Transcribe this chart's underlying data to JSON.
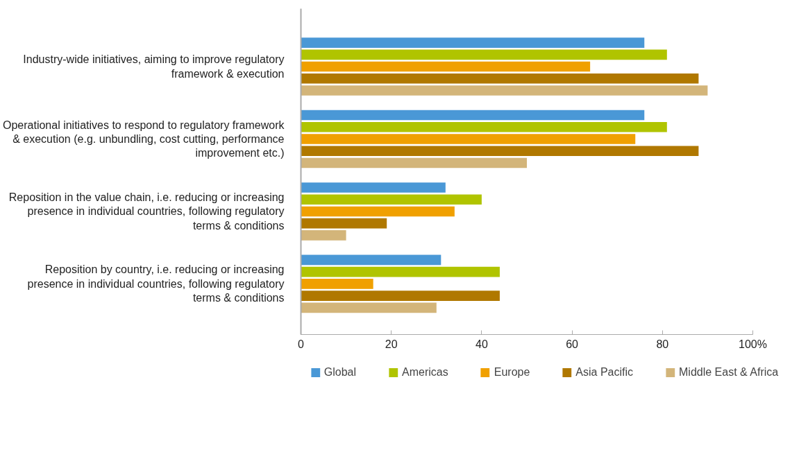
{
  "chart_data": {
    "type": "bar",
    "orientation": "horizontal",
    "categories": [
      "Industry-wide initiatives, aiming to improve regulatory framework & execution",
      "Operational initiatives to respond to regulatory framework & execution (e.g. unbundling, cost cutting, performance improvement etc.)",
      "Reposition in the value chain, i.e. reducing or increasing presence in individual countries, following regulatory terms & conditions",
      "Reposition by country, i.e. reducing or increasing presence in individual countries, following regulatory terms & conditions"
    ],
    "series": [
      {
        "name": "Global",
        "color": "#4a98d6",
        "values": [
          76,
          76,
          32,
          31
        ]
      },
      {
        "name": "Americas",
        "color": "#b0c400",
        "values": [
          81,
          81,
          40,
          44
        ]
      },
      {
        "name": "Europe",
        "color": "#f0a000",
        "values": [
          64,
          74,
          34,
          16
        ]
      },
      {
        "name": "Asia Pacific",
        "color": "#b07800",
        "values": [
          88,
          88,
          19,
          44
        ]
      },
      {
        "name": "Middle East & Africa",
        "color": "#d3b57a",
        "values": [
          90,
          50,
          10,
          30
        ]
      }
    ],
    "xlim": [
      0,
      100
    ],
    "xticks": [
      0,
      20,
      40,
      60,
      80,
      {
        "value": 100,
        "label": "100%"
      }
    ],
    "grid": false,
    "legend": "bottom"
  }
}
